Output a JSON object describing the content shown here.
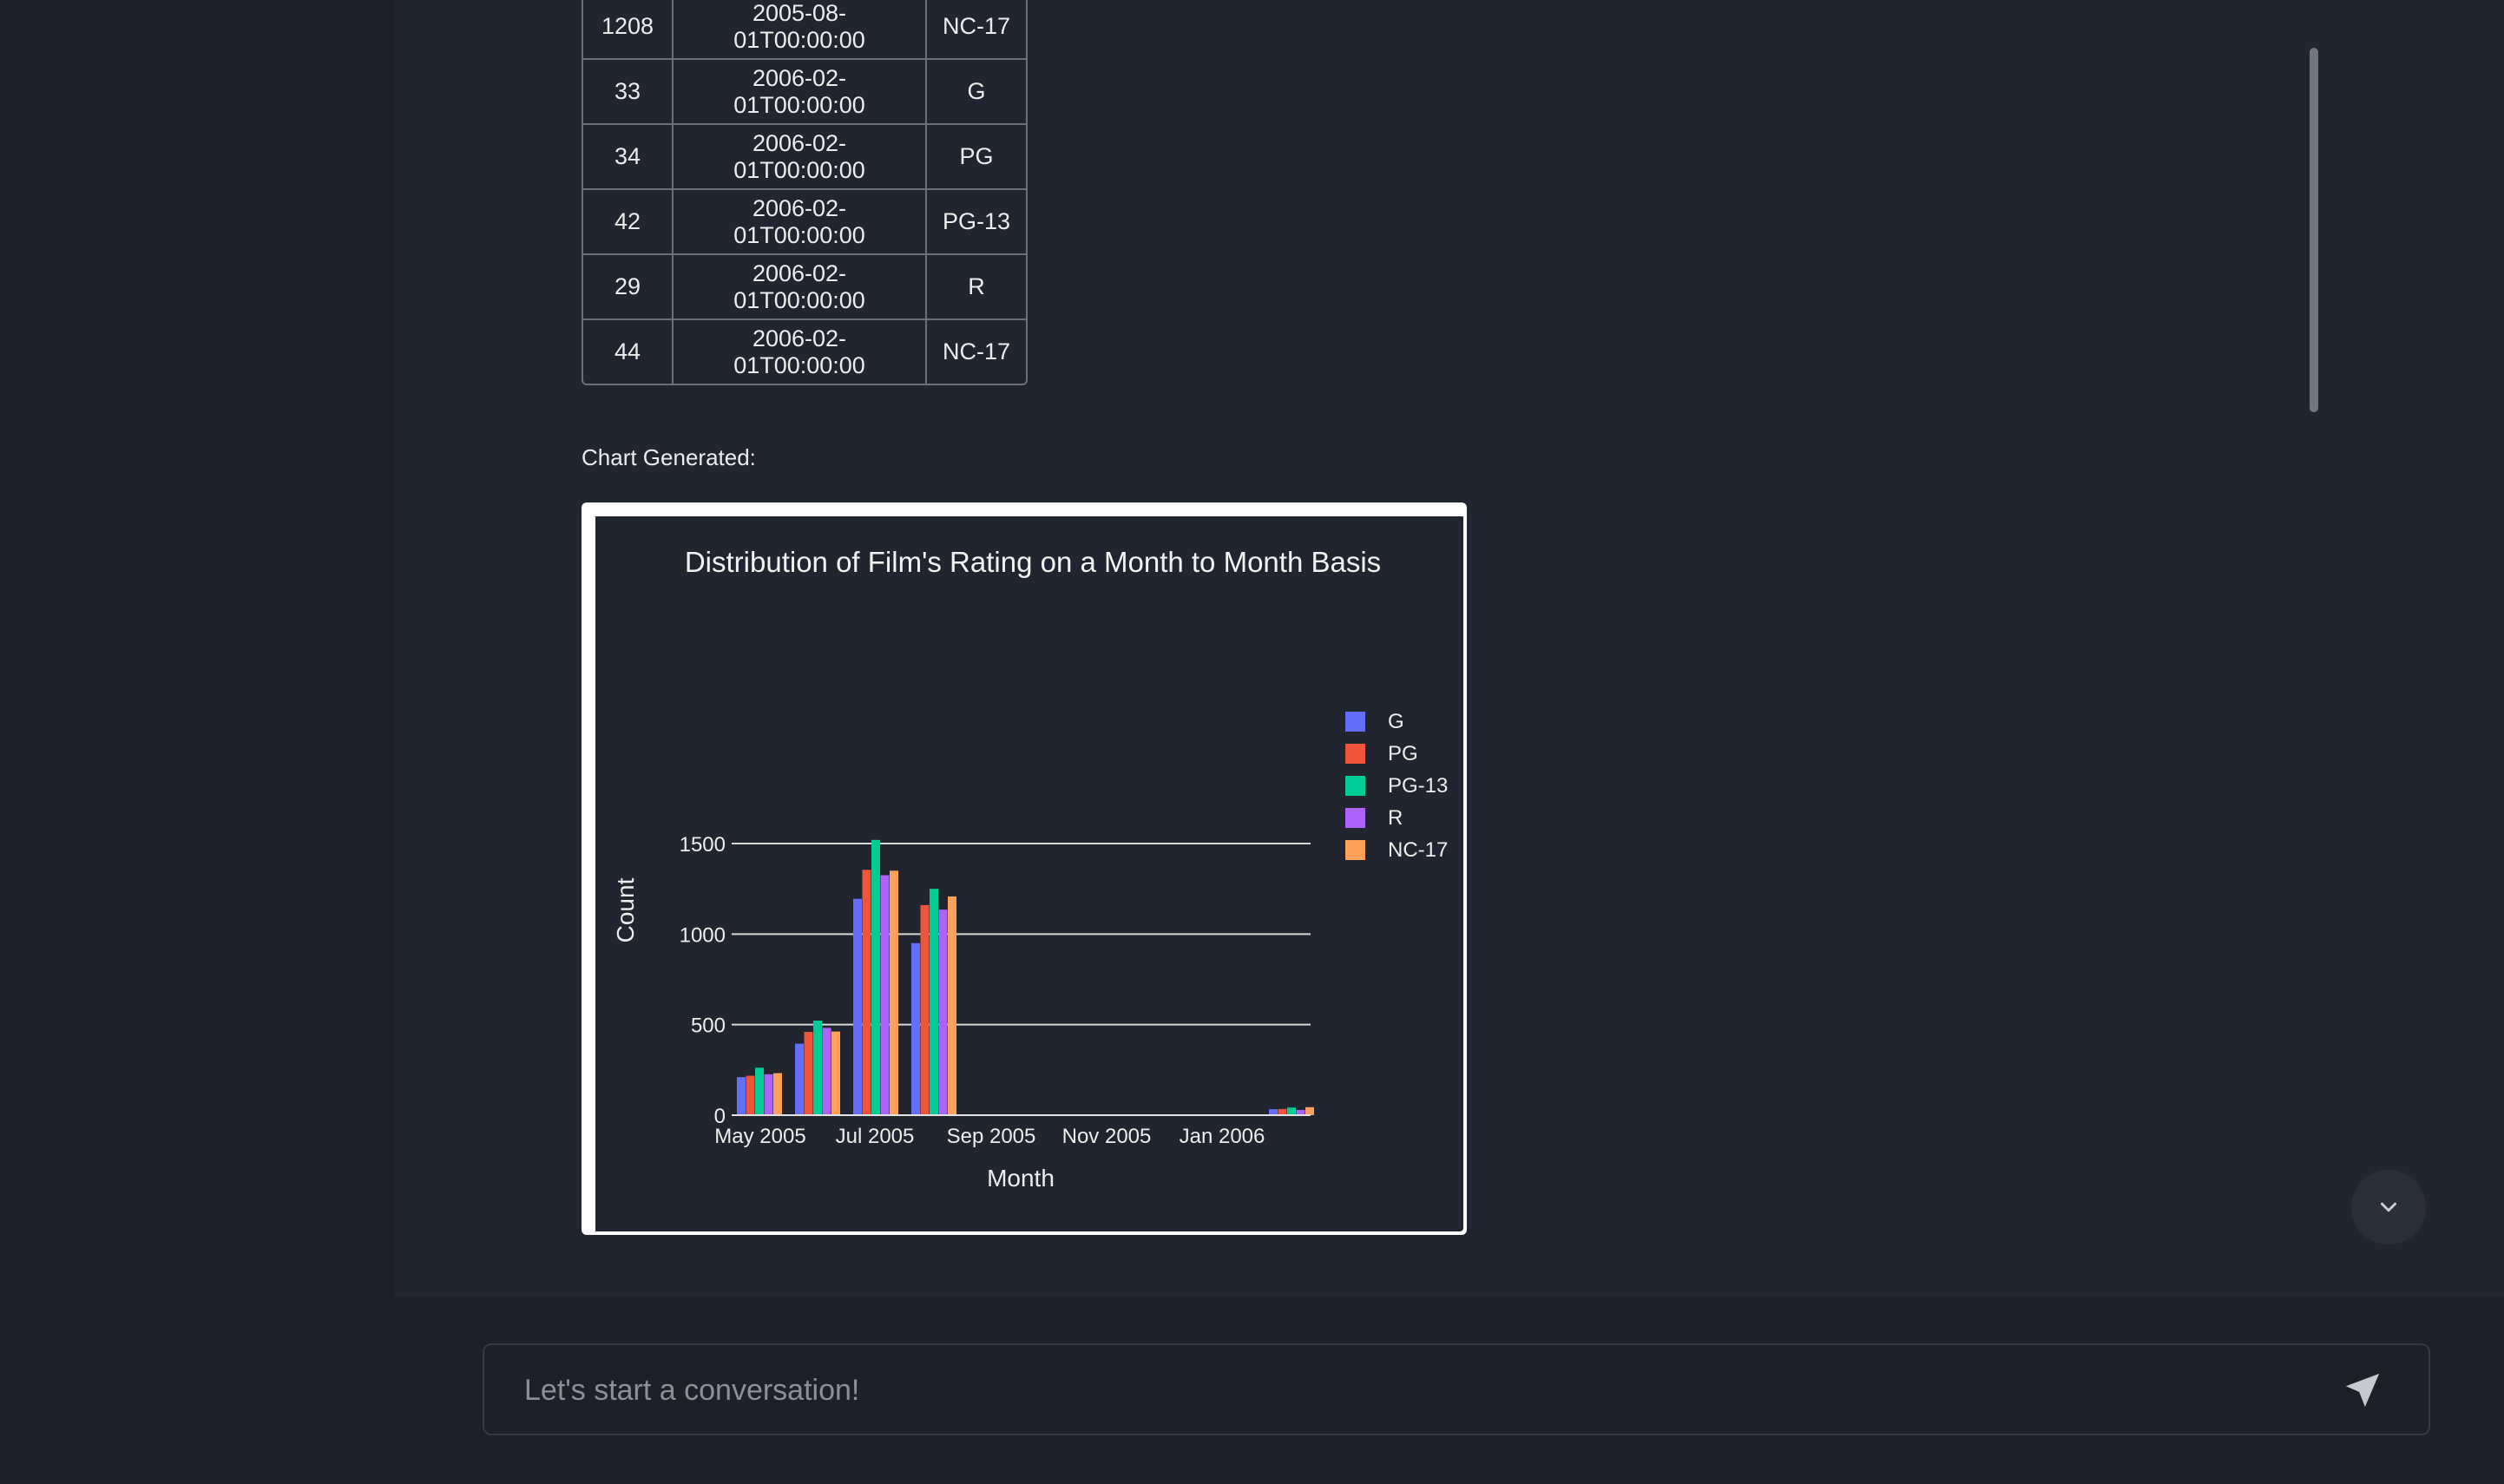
{
  "table": {
    "rows": [
      [
        "1208",
        "2005-08-01T00:00:00",
        "NC-17"
      ],
      [
        "33",
        "2006-02-01T00:00:00",
        "G"
      ],
      [
        "34",
        "2006-02-01T00:00:00",
        "PG"
      ],
      [
        "42",
        "2006-02-01T00:00:00",
        "PG-13"
      ],
      [
        "29",
        "2006-02-01T00:00:00",
        "R"
      ],
      [
        "44",
        "2006-02-01T00:00:00",
        "NC-17"
      ]
    ]
  },
  "chart_label": "Chart Generated:",
  "chart_data": {
    "type": "bar",
    "title": "Distribution of Film's Rating on a Month to Month Basis",
    "xlabel": "Month",
    "ylabel": "Count",
    "ylim": [
      0,
      1500
    ],
    "yticks": [
      "0",
      "500",
      "1000",
      "1500"
    ],
    "xticks": [
      "May 2005",
      "Jul 2005",
      "Sep 2005",
      "Nov 2005",
      "Jan 2006"
    ],
    "x": [
      "2005-05",
      "2005-06",
      "2005-07",
      "2005-08",
      "2006-02"
    ],
    "grid": true,
    "legend_position": "top-right",
    "series": [
      {
        "name": "G",
        "color": "#636efa",
        "values": [
          210,
          395,
          1195,
          950,
          33
        ]
      },
      {
        "name": "PG",
        "color": "#ef553b",
        "values": [
          218,
          460,
          1355,
          1160,
          34
        ]
      },
      {
        "name": "PG-13",
        "color": "#00cc96",
        "values": [
          262,
          522,
          1520,
          1250,
          42
        ]
      },
      {
        "name": "R",
        "color": "#ab63fa",
        "values": [
          226,
          482,
          1325,
          1135,
          29
        ]
      },
      {
        "name": "NC-17",
        "color": "#ffa15a",
        "values": [
          232,
          462,
          1350,
          1208,
          44
        ]
      }
    ]
  },
  "composer": {
    "placeholder": "Let's start a conversation!"
  },
  "icons": {
    "send": "paper-plane-icon",
    "scroll_down": "chevron-down-icon"
  }
}
